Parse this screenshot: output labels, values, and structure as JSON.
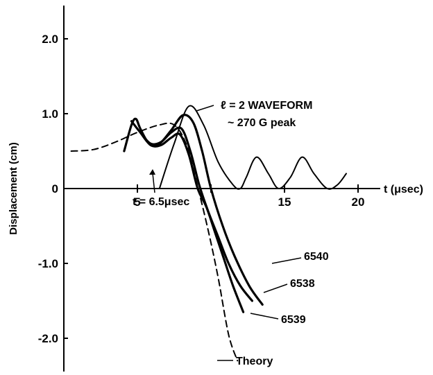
{
  "chart_data": {
    "type": "line",
    "xlabel": "t (μsec)",
    "ylabel": "Displacement (cm)",
    "xlim": [
      0,
      22.5
    ],
    "ylim": [
      -2.45,
      2.45
    ],
    "x_ticks": [
      5,
      10,
      15,
      20
    ],
    "x_tick_labels": [
      "5",
      "",
      "15",
      "20"
    ],
    "y_ticks": [
      2.0,
      1.0,
      0,
      -1.0,
      -2.0
    ],
    "y_tick_labels": [
      "2.0",
      "1.0",
      "0",
      "-1.0",
      "-2.0"
    ],
    "grid": false,
    "annotations": {
      "waveform_line1": "ℓ = 2 WAVEFORM",
      "waveform_line2": "~ 270 G peak",
      "time_marker": "t = 6.5μsec",
      "label_6540": "6540",
      "label_6538": "6538",
      "label_6539": "6539",
      "label_theory": "Theory"
    },
    "series": [
      {
        "name": "ℓ = 2 WAVEFORM",
        "style": "solid-thin",
        "x": [
          6.5,
          7.5,
          8.5,
          9.5,
          10.5,
          11.5,
          12.0,
          12.4,
          13.1,
          13.9,
          14.6,
          15.4,
          16.2,
          17.0,
          17.9,
          18.6,
          19.2
        ],
        "y": [
          0,
          0.6,
          1.1,
          0.85,
          0.35,
          0.05,
          0,
          0.15,
          0.42,
          0.2,
          0,
          0.15,
          0.42,
          0.2,
          0,
          0.05,
          0.2
        ]
      },
      {
        "name": "Theory",
        "style": "dashed",
        "x": [
          0.5,
          2.0,
          3.5,
          5.0,
          6.5,
          7.5,
          8.3,
          9.0,
          9.8,
          10.5,
          11.2,
          11.8
        ],
        "y": [
          0.5,
          0.52,
          0.62,
          0.75,
          0.85,
          0.85,
          0.6,
          0.1,
          -0.55,
          -1.2,
          -1.95,
          -2.3
        ]
      },
      {
        "name": "6540",
        "style": "solid-thick",
        "x": [
          4.1,
          4.6,
          4.9,
          5.2,
          5.8,
          6.5,
          7.3,
          8.1,
          8.8,
          9.4,
          10.0,
          10.8,
          11.6,
          12.6,
          13.5
        ],
        "y": [
          0.5,
          0.85,
          0.93,
          0.8,
          0.6,
          0.6,
          0.78,
          0.98,
          0.88,
          0.5,
          0.0,
          -0.5,
          -0.9,
          -1.3,
          -1.55
        ]
      },
      {
        "name": "6538",
        "style": "solid-thick",
        "x": [
          4.6,
          5.2,
          5.9,
          6.6,
          7.3,
          8.0,
          8.6,
          9.2,
          9.8,
          10.5,
          11.2,
          12.0,
          12.8
        ],
        "y": [
          0.9,
          0.75,
          0.6,
          0.62,
          0.75,
          0.8,
          0.5,
          0.05,
          -0.3,
          -0.65,
          -1.0,
          -1.3,
          -1.5
        ]
      },
      {
        "name": "6539",
        "style": "solid-thick",
        "x": [
          5.2,
          5.9,
          6.6,
          7.3,
          7.9,
          8.5,
          9.1,
          9.7,
          10.3,
          10.9,
          11.5,
          12.2
        ],
        "y": [
          0.75,
          0.58,
          0.58,
          0.68,
          0.72,
          0.45,
          0.0,
          -0.25,
          -0.6,
          -0.95,
          -1.3,
          -1.65
        ]
      }
    ]
  }
}
